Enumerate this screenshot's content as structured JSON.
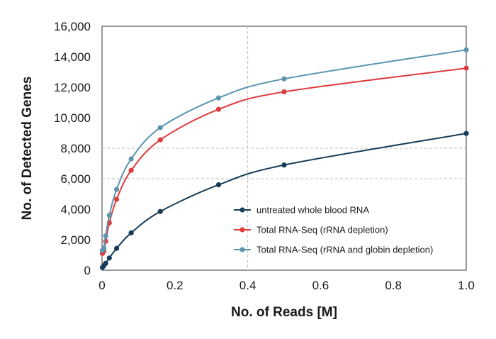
{
  "chart_data": {
    "type": "line",
    "title": "",
    "xlabel": "No. of Reads [M]",
    "ylabel": "No. of Detected Genes",
    "xlim": [
      0,
      1.0
    ],
    "ylim": [
      0,
      16000
    ],
    "xticks": [
      0,
      0.2,
      0.4,
      0.6,
      0.8,
      1.0
    ],
    "xtick_labels": [
      "0",
      "0.2",
      "0.4",
      "0.6",
      "0.8",
      "1.0"
    ],
    "yticks": [
      0,
      2000,
      4000,
      6000,
      8000,
      10000,
      12000,
      14000,
      16000
    ],
    "ytick_labels": [
      "0",
      "2,000",
      "4,000",
      "6,000",
      "8,000",
      "10,000",
      "12,000",
      "14,000",
      "16,000"
    ],
    "grid": "dashed, partial (x = 0.4 vertical; y = 6,000 and 8,000 horizontal)",
    "legend_position": "lower-right",
    "series": [
      {
        "name": "untreated whole blood RNA",
        "color": "#173c57",
        "x": [
          0.001,
          0.005,
          0.01,
          0.02,
          0.04,
          0.08,
          0.16,
          0.32,
          0.5,
          1.0
        ],
        "y": [
          180,
          300,
          450,
          800,
          1430,
          2450,
          3850,
          5600,
          6900,
          8970
        ]
      },
      {
        "name": "Total RNA-Seq (rRNA depletion)",
        "color": "#e03a3e",
        "x": [
          0.001,
          0.005,
          0.01,
          0.02,
          0.04,
          0.08,
          0.16,
          0.32,
          0.5,
          1.0
        ],
        "y": [
          1100,
          1250,
          1900,
          3100,
          4650,
          6550,
          8550,
          10550,
          11700,
          13250
        ]
      },
      {
        "name": "Total RNA-Seq (rRNA and globin depletion)",
        "color": "#5b95ae",
        "x": [
          0.001,
          0.005,
          0.01,
          0.02,
          0.04,
          0.08,
          0.16,
          0.32,
          0.5,
          1.0
        ],
        "y": [
          1300,
          1450,
          2250,
          3600,
          5300,
          7300,
          9350,
          11300,
          12550,
          14450
        ]
      }
    ]
  }
}
